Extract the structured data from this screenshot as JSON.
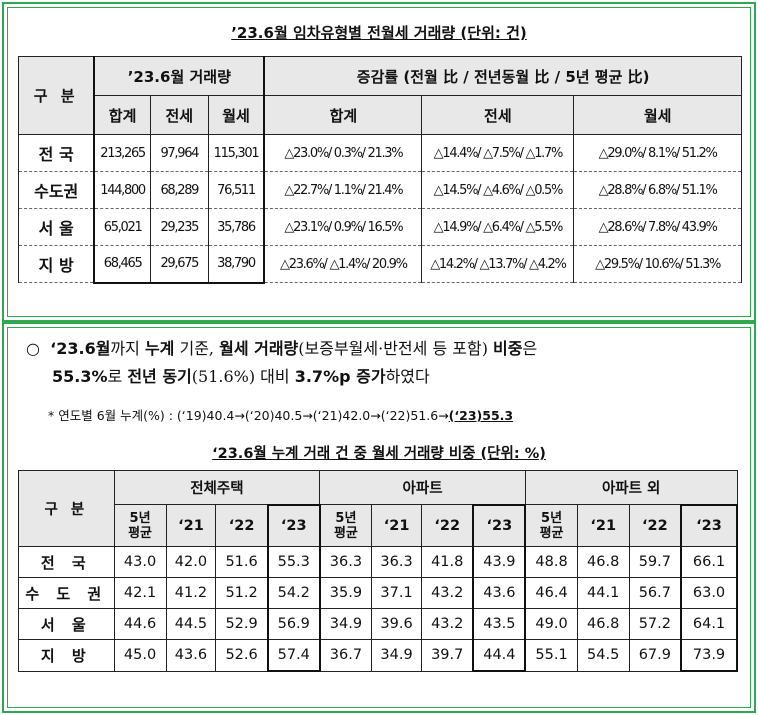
{
  "table1": {
    "title": "’23.6월 임차유형별 전월세 거래량 (단위: 건)",
    "header_category": "구 분",
    "header_volume": "’23.6월 거래량",
    "header_change": "증감률 (전월 比 / 전년동월 比 / 5년 평균 比)",
    "sub_volume": [
      "합계",
      "전세",
      "월세"
    ],
    "sub_change": [
      "합계",
      "전세",
      "월세"
    ],
    "rows": [
      {
        "label": "전 국",
        "total": "213,265",
        "jeonse": "97,964",
        "wolse": "115,301",
        "c_total": "△23.0%/ 0.3%/ 21.3%",
        "c_jeonse": "△14.4%/ △7.5%/ △1.7%",
        "c_wolse": "△29.0%/ 8.1%/ 51.2%"
      },
      {
        "label": "수도권",
        "total": "144,800",
        "jeonse": "68,289",
        "wolse": "76,511",
        "c_total": "△22.7%/ 1.1%/ 21.4%",
        "c_jeonse": "△14.5%/ △4.6%/ △0.5%",
        "c_wolse": "△28.8%/ 6.8%/ 51.1%"
      },
      {
        "label": "서 울",
        "total": "65,021",
        "jeonse": "29,235",
        "wolse": "35,786",
        "c_total": "△23.1%/ 0.9%/ 16.5%",
        "c_jeonse": "△14.9%/ △6.4%/ △5.5%",
        "c_wolse": "△28.6%/ 7.8%/ 43.9%"
      },
      {
        "label": "지 방",
        "total": "68,465",
        "jeonse": "29,675",
        "wolse": "38,790",
        "c_total": "△23.6%/ △1.4%/ 20.9%",
        "c_jeonse": "△14.2%/ △13.7%/ △4.2%",
        "c_wolse": "△29.5%/ 10.6%/ 51.3%"
      }
    ]
  },
  "paragraph": {
    "bullet": "○",
    "s1": "‘23.6월",
    "s2": "까지 ",
    "s3": "누계",
    "s4": " 기준, ",
    "s5": "월세 거래량",
    "s6": "(보증부월세·반전세 등 포함) ",
    "s7": "비중",
    "s8": "은",
    "s9": "55.3%",
    "s10": "로 ",
    "s11": "전년 동기",
    "s12": "(51.6%) 대비 ",
    "s13": "3.7%p 증가",
    "s14": "하였다"
  },
  "note": {
    "prefix": "* 연도별 6월 누계(%) : (‘19)40.4→(‘20)40.5→(‘21)42.0→(‘22)51.6→",
    "highlight": "(‘23)55.3"
  },
  "table2": {
    "title": "‘23.6월 누계 거래 건 중 월세 거래량 비중 (단위: %)",
    "header_category": "구 분",
    "groups": [
      "전체주택",
      "아파트",
      "아파트 외"
    ],
    "sub": [
      "5년\n평균",
      "‘21",
      "‘22",
      "‘23"
    ],
    "rows": [
      {
        "label": "전 국",
        "values": [
          "43.0",
          "42.0",
          "51.6",
          "55.3",
          "36.3",
          "36.3",
          "41.8",
          "43.9",
          "48.8",
          "46.8",
          "59.7",
          "66.1"
        ]
      },
      {
        "label": "수 도 권",
        "values": [
          "42.1",
          "41.2",
          "51.2",
          "54.2",
          "35.9",
          "37.1",
          "43.2",
          "43.6",
          "46.4",
          "44.1",
          "56.7",
          "63.0"
        ]
      },
      {
        "label": "서 울",
        "values": [
          "44.6",
          "44.5",
          "52.9",
          "56.9",
          "34.9",
          "39.6",
          "43.2",
          "43.5",
          "49.0",
          "46.8",
          "57.2",
          "64.1"
        ]
      },
      {
        "label": "지 방",
        "values": [
          "45.0",
          "43.6",
          "52.6",
          "57.4",
          "36.7",
          "34.9",
          "39.7",
          "44.4",
          "55.1",
          "54.5",
          "67.9",
          "73.9"
        ]
      }
    ]
  },
  "colors": {
    "frame": "#2fa84f",
    "header_bg": "#e8e8e8"
  }
}
